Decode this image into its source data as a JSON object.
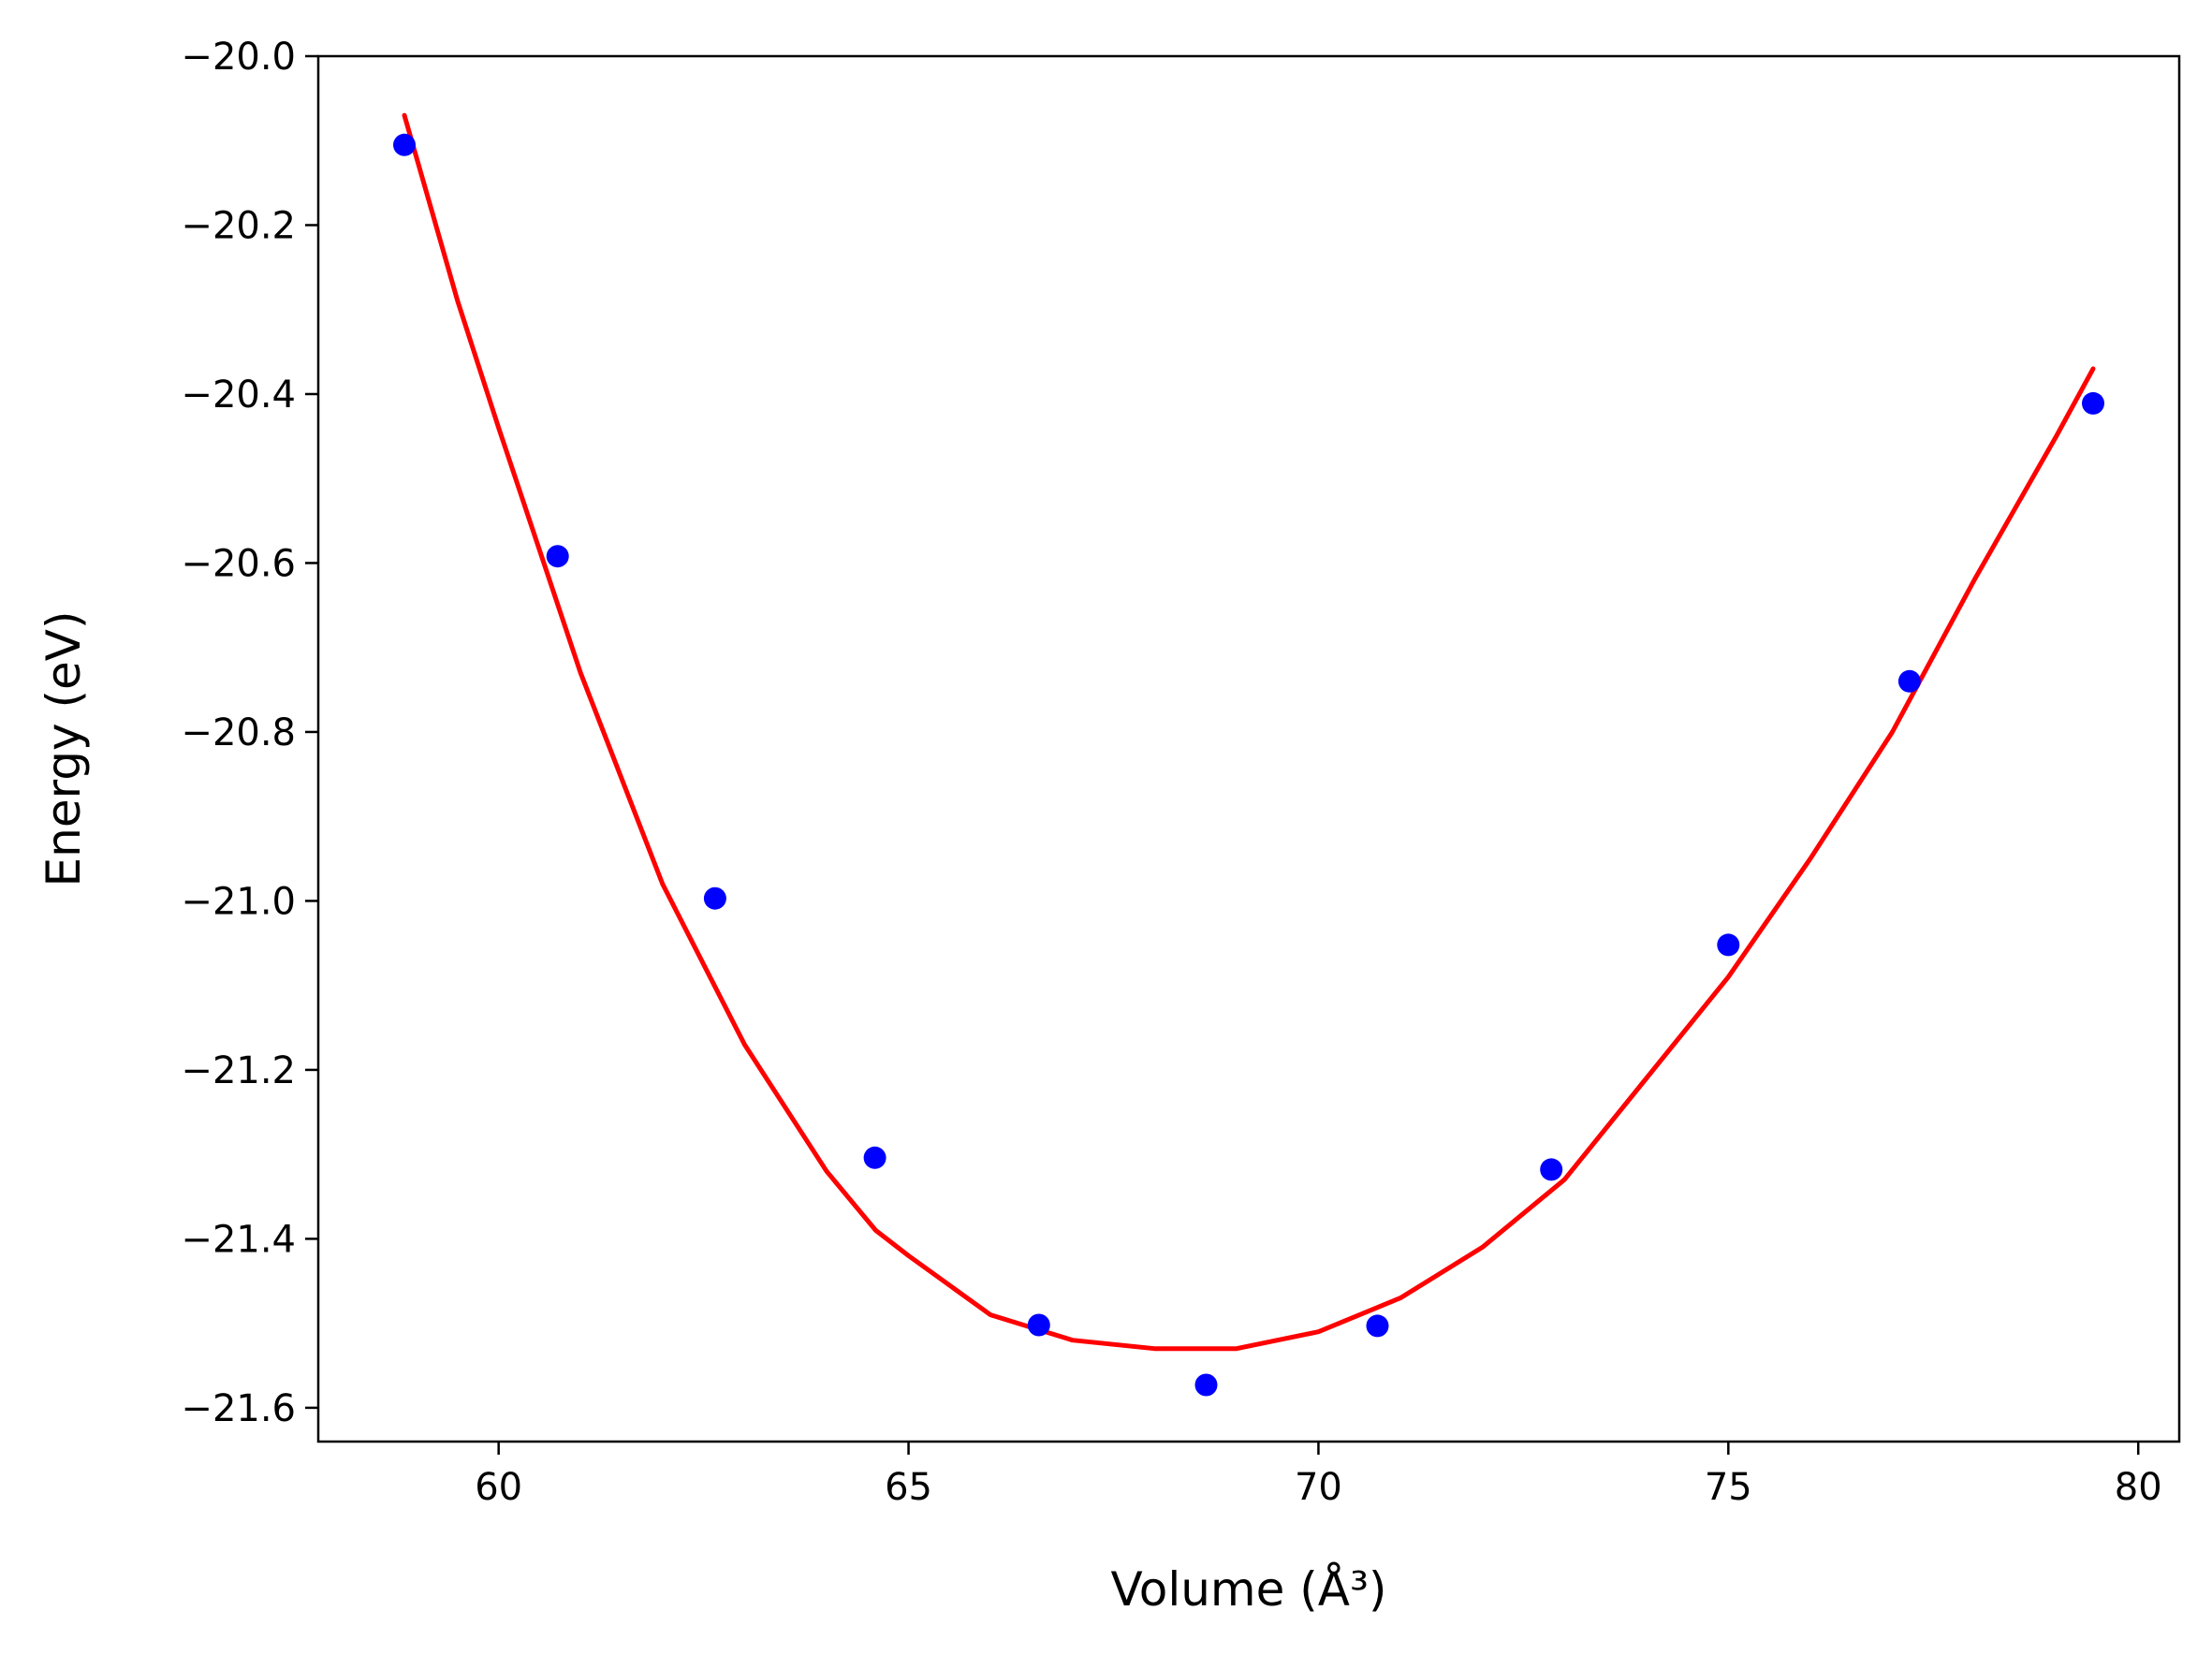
{
  "chart_data": {
    "type": "scatter",
    "xlabel": "Volume (Å³)",
    "ylabel": "Energy (eV)",
    "xlim": [
      57.8,
      80.5
    ],
    "ylim": [
      -21.64,
      -20.0
    ],
    "xticks": [
      60,
      65,
      70,
      75,
      80
    ],
    "yticks": [
      -20.0,
      -20.2,
      -20.4,
      -20.6,
      -20.8,
      -21.0,
      -21.2,
      -21.4,
      -21.6
    ],
    "xtick_labels": [
      "60",
      "65",
      "70",
      "75",
      "80"
    ],
    "ytick_labels": [
      "−20.0",
      "−20.2",
      "−20.4",
      "−20.6",
      "−20.8",
      "−21.0",
      "−21.2",
      "−21.4",
      "−21.6"
    ],
    "grid": false,
    "series": [
      {
        "kind": "points",
        "color": "#0000ff",
        "x": [
          58.85,
          60.72,
          62.64,
          64.59,
          66.59,
          68.63,
          70.72,
          72.84,
          75.0,
          77.21,
          79.45
        ],
        "y": [
          -20.105,
          -20.592,
          -20.997,
          -21.304,
          -21.502,
          -21.573,
          -21.503,
          -21.318,
          -21.052,
          -20.74,
          -20.411
        ]
      },
      {
        "kind": "fit-curve",
        "color": "#ff0000",
        "x": [
          58.85,
          59.5,
          60.0,
          61.0,
          62.0,
          63.0,
          64.0,
          64.6,
          65.0,
          66.0,
          67.0,
          68.0,
          68.6,
          69.0,
          70.0,
          71.0,
          72.0,
          73.0,
          74.0,
          75.0,
          76.0,
          77.0,
          78.0,
          79.0,
          79.45
        ],
        "y": [
          -20.07,
          -20.29,
          -20.44,
          -20.73,
          -20.98,
          -21.17,
          -21.32,
          -21.39,
          -21.42,
          -21.49,
          -21.52,
          -21.53,
          -21.53,
          -21.53,
          -21.51,
          -21.47,
          -21.41,
          -21.33,
          -21.21,
          -21.09,
          -20.95,
          -20.8,
          -20.62,
          -20.45,
          -20.37
        ]
      }
    ]
  }
}
